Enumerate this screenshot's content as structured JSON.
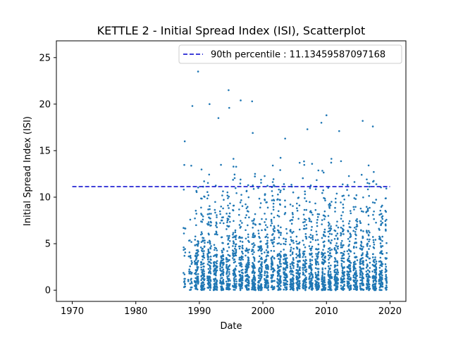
{
  "chart_data": {
    "type": "scatter",
    "title": "KETTLE 2 - Initial Spread Index (ISI), Scatterplot",
    "xlabel": "Date",
    "ylabel": "Initial Spread Index (ISI)",
    "xlim": [
      1967.5,
      2022.5
    ],
    "ylim": [
      -1.2,
      26.8
    ],
    "xticks": [
      1970,
      1980,
      1990,
      2000,
      2010,
      2020
    ],
    "yticks": [
      0,
      5,
      10,
      15,
      20,
      25
    ],
    "grid": false,
    "legend_position": "top-right",
    "series": [
      {
        "name": "90th percentile : 11.13459587097168",
        "kind": "line",
        "style": "dashed",
        "color": "#0000cc",
        "x": [
          1970,
          2020
        ],
        "y": [
          11.13459587097168,
          11.13459587097168
        ]
      },
      {
        "kind": "scatter",
        "color": "#1f77b4",
        "x_range": [
          1987.5,
          2019.5
        ],
        "y_range": [
          0,
          23.5
        ],
        "notable_points": [
          {
            "x": 1989.8,
            "y": 23.5
          },
          {
            "x": 1994.6,
            "y": 21.5
          },
          {
            "x": 1996.5,
            "y": 20.4
          },
          {
            "x": 1998.3,
            "y": 20.3
          },
          {
            "x": 1991.6,
            "y": 20.0
          },
          {
            "x": 1988.9,
            "y": 19.8
          },
          {
            "x": 1994.7,
            "y": 19.6
          },
          {
            "x": 2010.0,
            "y": 18.8
          },
          {
            "x": 1993.0,
            "y": 18.5
          },
          {
            "x": 2015.7,
            "y": 18.2
          },
          {
            "x": 2009.2,
            "y": 18.0
          },
          {
            "x": 2017.3,
            "y": 17.6
          },
          {
            "x": 2007.0,
            "y": 17.3
          },
          {
            "x": 2012.0,
            "y": 17.1
          },
          {
            "x": 1998.4,
            "y": 16.9
          },
          {
            "x": 1987.7,
            "y": 16.0
          },
          {
            "x": 2003.5,
            "y": 16.3
          }
        ]
      }
    ]
  }
}
